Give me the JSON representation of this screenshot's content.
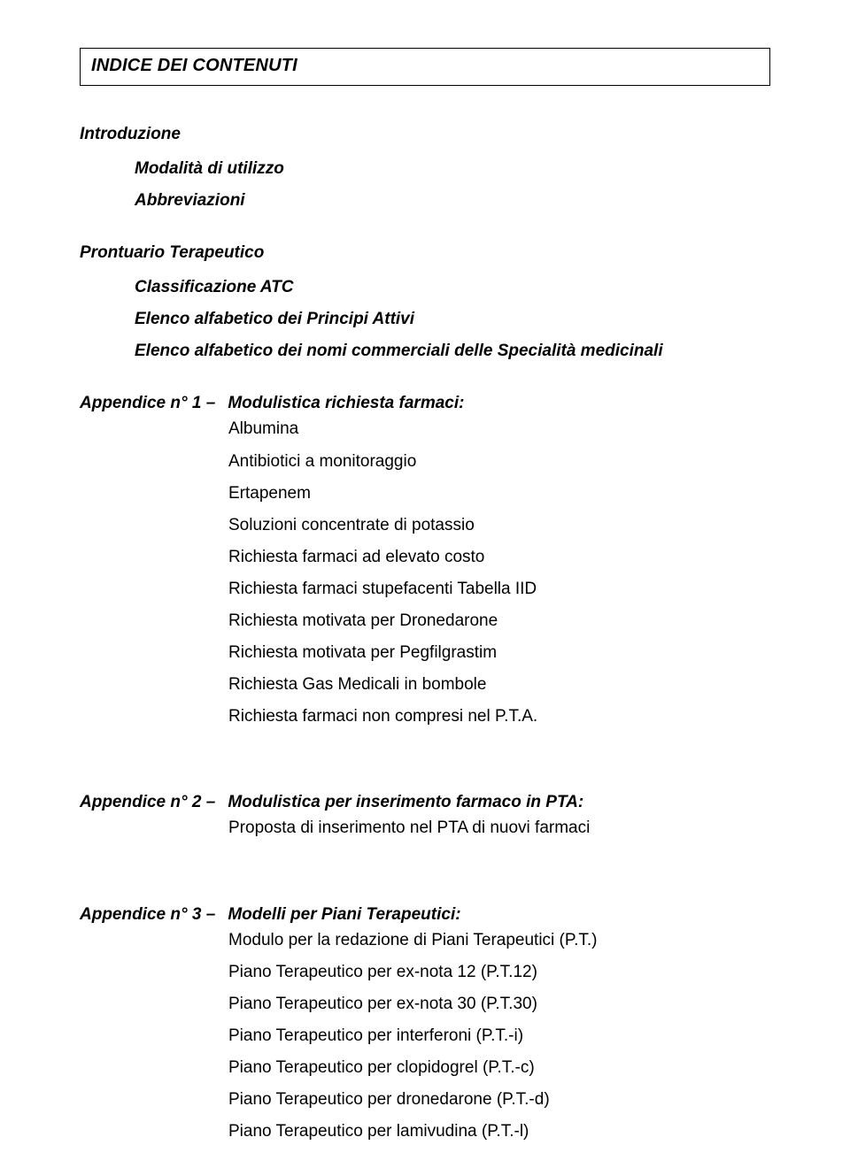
{
  "title_box": "INDICE DEI CONTENUTI",
  "intro": {
    "heading": "Introduzione",
    "items": [
      "Modalità di utilizzo",
      "Abbreviazioni"
    ]
  },
  "prontuario": {
    "heading": "Prontuario Terapeutico",
    "items": [
      "Classificazione ATC",
      "Elenco alfabetico dei Principi Attivi",
      "Elenco alfabetico dei nomi commerciali delle Specialità medicinali"
    ]
  },
  "app1": {
    "label": "Appendice n° 1 –",
    "title": "Modulistica richiesta farmaci:",
    "items": [
      "Albumina",
      "Antibiotici a monitoraggio",
      "Ertapenem",
      "Soluzioni concentrate di potassio",
      "Richiesta farmaci ad elevato costo",
      "Richiesta farmaci stupefacenti Tabella IID",
      "Richiesta motivata per Dronedarone",
      "Richiesta motivata per Pegfilgrastim",
      "Richiesta Gas Medicali in bombole",
      "Richiesta farmaci non compresi nel P.T.A."
    ]
  },
  "app2": {
    "label": "Appendice n° 2 –",
    "title": "Modulistica per inserimento farmaco in PTA:",
    "items": [
      "Proposta di inserimento nel PTA di nuovi farmaci"
    ]
  },
  "app3": {
    "label": "Appendice n° 3 –",
    "title": "Modelli per Piani Terapeutici:",
    "items": [
      "Modulo per la redazione di Piani Terapeutici (P.T.)",
      "Piano Terapeutico per ex-nota 12 (P.T.12)",
      "Piano Terapeutico per ex-nota 30 (P.T.30)",
      "Piano Terapeutico per interferoni (P.T.-i)",
      "Piano Terapeutico per clopidogrel (P.T.-c)",
      "Piano Terapeutico per dronedarone (P.T.-d)",
      "Piano Terapeutico per lamivudina (P.T.-l)"
    ]
  }
}
